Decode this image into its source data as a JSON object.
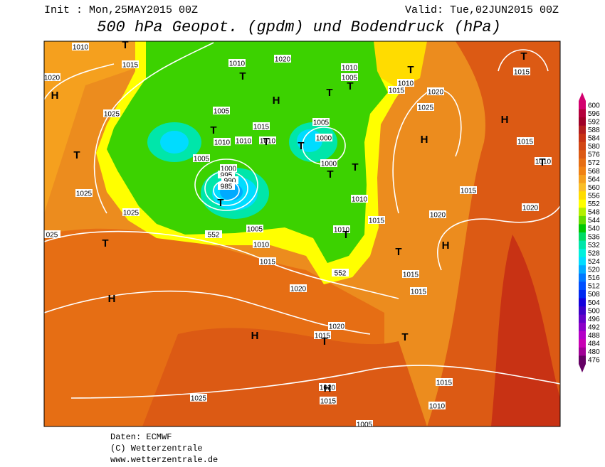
{
  "header": {
    "init": "Init : Mon,25MAY2015 00Z",
    "valid": "Valid: Tue,02JUN2015 00Z",
    "title": "500 hPa Geopot. (gpdm) und Bodendruck (hPa)"
  },
  "map": {
    "isobar_labels": [
      "1010",
      "1020",
      "1015",
      "1025",
      "1025",
      "1025",
      "025",
      "1010",
      "1020",
      "1010",
      "1005",
      "1015",
      "1010",
      "1020",
      "1025",
      "1015",
      "1005",
      "1015",
      "1005",
      "1010",
      "1010",
      "1010",
      "1000",
      "1005",
      "1000",
      "995",
      "990",
      "985",
      "1000",
      "1015",
      "1010",
      "1010",
      "1015",
      "1020",
      "1020",
      "552",
      "1005",
      "1010",
      "1015",
      "1010",
      "1015",
      "552",
      "1015",
      "1015",
      "1020",
      "1020",
      "1015",
      "1025",
      "1020",
      "1015",
      "1015",
      "1010",
      "1005"
    ],
    "centers": [
      "H",
      "T",
      "T",
      "H",
      "T",
      "T",
      "T",
      "T",
      "H",
      "H",
      "T",
      "T",
      "T",
      "T",
      "T",
      "T",
      "T",
      "T",
      "T",
      "T",
      "T",
      "H",
      "H",
      "H",
      "T",
      "T",
      "H"
    ]
  },
  "colorbar": {
    "labels": [
      600,
      596,
      592,
      588,
      584,
      580,
      576,
      572,
      568,
      564,
      560,
      556,
      552,
      548,
      544,
      540,
      536,
      532,
      528,
      524,
      520,
      516,
      512,
      508,
      504,
      500,
      496,
      492,
      488,
      484,
      480,
      476
    ],
    "colors": [
      "#d2006e",
      "#b4003c",
      "#a00028",
      "#b41e1e",
      "#c83214",
      "#d24614",
      "#dc5a14",
      "#e66e14",
      "#f08214",
      "#f5a01e",
      "#fabe28",
      "#ffdc00",
      "#ffff00",
      "#b4f000",
      "#64dc00",
      "#00c800",
      "#00dc64",
      "#00e6aa",
      "#00f0dc",
      "#00dcff",
      "#00aaff",
      "#0078ff",
      "#0050ff",
      "#0028f0",
      "#1400dc",
      "#3c00c8",
      "#6400c8",
      "#8c00c8",
      "#b400c8",
      "#c800b4",
      "#a00096",
      "#640064"
    ]
  },
  "footer": {
    "source": "Daten: ECMWF",
    "copyright": "(C) Wetterzentrale",
    "url": "www.wetterzentrale.de"
  }
}
